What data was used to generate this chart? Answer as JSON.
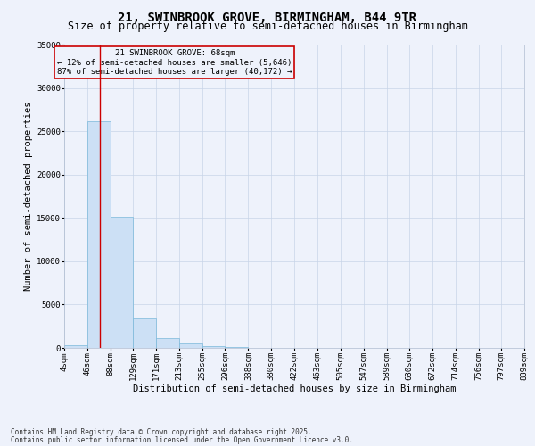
{
  "title": "21, SWINBROOK GROVE, BIRMINGHAM, B44 9TR",
  "subtitle": "Size of property relative to semi-detached houses in Birmingham",
  "xlabel": "Distribution of semi-detached houses by size in Birmingham",
  "ylabel": "Number of semi-detached properties",
  "footnote1": "Contains HM Land Registry data © Crown copyright and database right 2025.",
  "footnote2": "Contains public sector information licensed under the Open Government Licence v3.0.",
  "property_size": 68,
  "property_label": "21 SWINBROOK GROVE: 68sqm",
  "pct_smaller": "12% of semi-detached houses are smaller (5,646)",
  "pct_larger": "87% of semi-detached houses are larger (40,172)",
  "bin_edges": [
    4,
    46,
    88,
    129,
    171,
    213,
    255,
    296,
    338,
    380,
    422,
    463,
    505,
    547,
    589,
    630,
    672,
    714,
    756,
    797,
    839
  ],
  "bin_labels": [
    "4sqm",
    "46sqm",
    "88sqm",
    "129sqm",
    "171sqm",
    "213sqm",
    "255sqm",
    "296sqm",
    "338sqm",
    "380sqm",
    "422sqm",
    "463sqm",
    "505sqm",
    "547sqm",
    "589sqm",
    "630sqm",
    "672sqm",
    "714sqm",
    "756sqm",
    "797sqm",
    "839sqm"
  ],
  "counts": [
    300,
    26100,
    15100,
    3400,
    1100,
    500,
    200,
    100,
    50,
    30,
    20,
    15,
    10,
    8,
    5,
    4,
    3,
    2,
    1,
    1
  ],
  "bar_color": "#cce0f5",
  "bar_edge_color": "#7ab8d9",
  "line_color": "#cc0000",
  "annotation_box_color": "#cc0000",
  "bg_color": "#eef2fb",
  "grid_color": "#c8d4e8",
  "ylim": [
    0,
    35000
  ],
  "title_fontsize": 10,
  "subtitle_fontsize": 8.5,
  "axis_label_fontsize": 7.5,
  "tick_fontsize": 6.5,
  "annot_fontsize": 6.5,
  "footnote_fontsize": 5.5,
  "yticks": [
    0,
    5000,
    10000,
    15000,
    20000,
    25000,
    30000,
    35000
  ]
}
